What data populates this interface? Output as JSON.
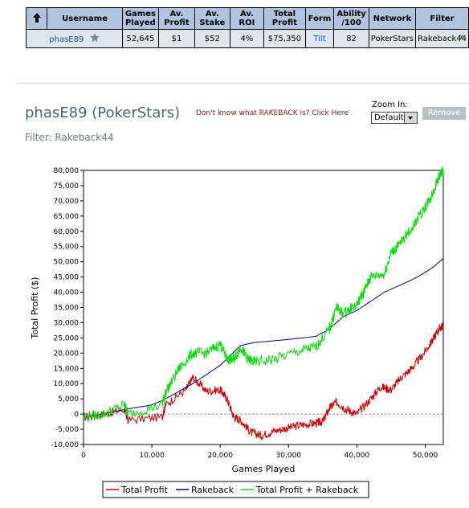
{
  "table": {
    "headers": [
      "Username",
      "Games Played",
      "Av. Profit",
      "Av. Stake",
      "Av. ROI",
      "Total Profit",
      "Form",
      "Ability /100",
      "Network",
      "Filter"
    ],
    "row": {
      "username": "phasE89",
      "games_played": "52,645",
      "av_profit": "$1",
      "av_stake": "$52",
      "av_roi": "4%",
      "total_profit": "$75,350",
      "form": "Tilt",
      "ability": "82",
      "network": "PokerStars",
      "filter": "Rakeback44",
      "remove_x": "x"
    }
  },
  "player_title": "phasE89 (PokerStars)",
  "rakeback_link": "Don't know what RAKEBACK is? Click Here",
  "filter_label": "Filter: Rakeback44",
  "zoom": {
    "label": "Zoom In:",
    "selected": "Default"
  },
  "remove_button": "Remove",
  "colors": {
    "profit": "#d00000",
    "rakeback": "#00008b",
    "combined": "#00e000",
    "header_bg": "#b0c4de",
    "row_bg": "#dde6ef"
  },
  "chart_data": {
    "type": "line",
    "xlabel": "Games Played",
    "ylabel": "Total Profit ($)",
    "xlim": [
      0,
      52645
    ],
    "ylim": [
      -10000,
      80000
    ],
    "x_ticks": [
      0,
      10000,
      20000,
      30000,
      40000,
      50000
    ],
    "x_tick_labels": [
      "0",
      "10,000",
      "20,000",
      "30,000",
      "40,000",
      "50,000"
    ],
    "y_ticks": [
      -10000,
      -5000,
      0,
      5000,
      10000,
      15000,
      20000,
      25000,
      30000,
      35000,
      40000,
      45000,
      50000,
      55000,
      60000,
      65000,
      70000,
      75000,
      80000
    ],
    "y_tick_labels": [
      "-10,000",
      "-5,000",
      "0",
      "5,000",
      "10,000",
      "15,000",
      "20,000",
      "25,000",
      "30,000",
      "35,000",
      "40,000",
      "45,000",
      "50,000",
      "55,000",
      "60,000",
      "65,000",
      "70,000",
      "75,000",
      "80,000"
    ],
    "legend_position": "bottom",
    "series": [
      {
        "name": "Total Profit",
        "x": [
          0,
          3000,
          6000,
          6500,
          11500,
          12000,
          15000,
          16000,
          18000,
          20000,
          21000,
          22000,
          23000,
          24500,
          26000,
          28000,
          30000,
          32000,
          34000,
          35000,
          36000,
          37000,
          38500,
          40000,
          42000,
          43500,
          45000,
          46500,
          48000,
          49500,
          51000,
          52000,
          52645
        ],
        "y": [
          -1000,
          0,
          1500,
          -2000,
          -1000,
          3000,
          8000,
          12000,
          7500,
          8000,
          5000,
          -1000,
          -2000,
          -6000,
          -7000,
          -5500,
          -4500,
          -3500,
          -3000,
          -2500,
          2000,
          4000,
          1500,
          0,
          5000,
          9000,
          8000,
          12000,
          15000,
          19000,
          24000,
          28000,
          29000
        ]
      },
      {
        "name": "Rakeback",
        "x": [
          0,
          3000,
          6000,
          10000,
          12000,
          16000,
          20000,
          23000,
          25000,
          30000,
          34000,
          36000,
          38000,
          40000,
          42000,
          44000,
          46000,
          48000,
          50000,
          51000,
          52645
        ],
        "y": [
          -1000,
          0,
          1500,
          3000,
          5000,
          10000,
          16000,
          22500,
          23500,
          24500,
          25500,
          28000,
          32000,
          34000,
          37000,
          40000,
          42000,
          44000,
          46500,
          48000,
          51000
        ]
      },
      {
        "name": "Total Profit + Rakeback",
        "x": [
          0,
          3000,
          6000,
          6500,
          11500,
          12000,
          14000,
          16000,
          18000,
          20000,
          21000,
          22000,
          23000,
          24000,
          25000,
          28000,
          32000,
          34000,
          36000,
          37000,
          38000,
          40000,
          41000,
          42000,
          44000,
          45000,
          46000,
          48000,
          50000,
          51000,
          52000,
          52645
        ],
        "y": [
          -1000,
          0,
          3000,
          0,
          3000,
          7000,
          15000,
          20000,
          20000,
          23000,
          18000,
          18000,
          22000,
          18000,
          17000,
          18000,
          21000,
          22000,
          28000,
          35000,
          33000,
          36000,
          40000,
          45000,
          46000,
          53000,
          55000,
          61000,
          68000,
          72000,
          78000,
          80000
        ]
      }
    ]
  }
}
